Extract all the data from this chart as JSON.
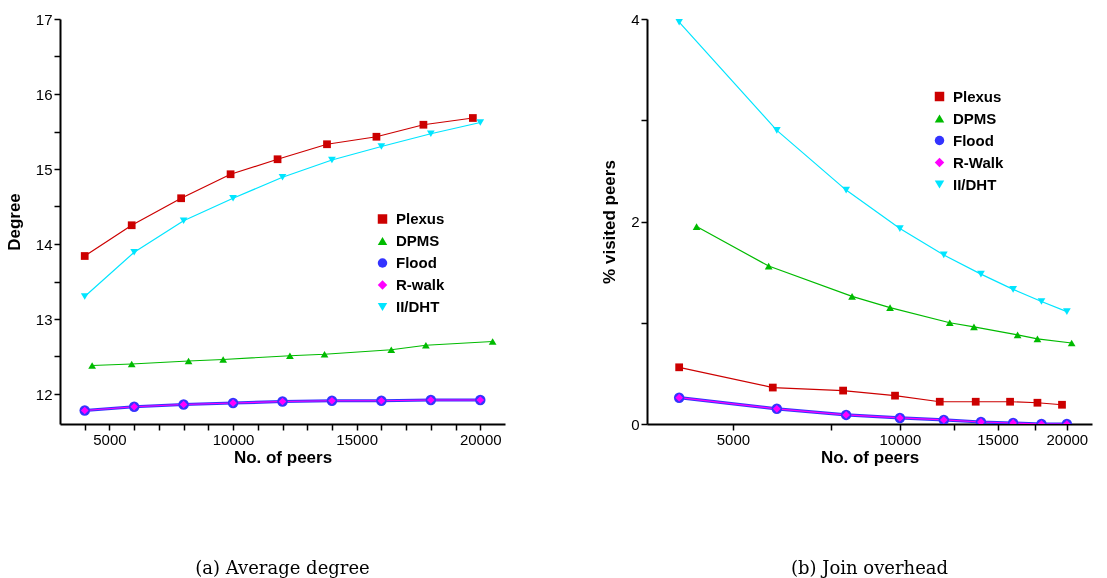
{
  "chart_data": [
    {
      "type": "line",
      "title": "(a) Average degree",
      "xlabel": "No. of peers",
      "ylabel": "Degree",
      "xlim": [
        3000,
        21000
      ],
      "xticks": [
        {
          "value": 4000,
          "label": null
        },
        5000,
        {
          "value": 6000,
          "label": null
        },
        {
          "value": 7000,
          "label": null
        },
        {
          "value": 8000,
          "label": null
        },
        {
          "value": 9000,
          "label": null
        },
        10000,
        {
          "value": 11000,
          "label": null
        },
        {
          "value": 12000,
          "label": null
        },
        {
          "value": 13000,
          "label": null
        },
        {
          "value": 14000,
          "label": null
        },
        15000,
        {
          "value": 16000,
          "label": null
        },
        {
          "value": 17000,
          "label": null
        },
        {
          "value": 18000,
          "label": null
        },
        {
          "value": 19000,
          "label": null
        },
        20000
      ],
      "ylim": [
        11.6,
        17
      ],
      "yticks": [
        12,
        {
          "value": 12.5,
          "label": null
        },
        13,
        {
          "value": 13.5,
          "label": null
        },
        14,
        {
          "value": 14.5,
          "label": null
        },
        15,
        {
          "value": 15.5,
          "label": null
        },
        16,
        {
          "value": 16.5,
          "label": null
        },
        17
      ],
      "grid": false,
      "legend": "right",
      "line_style": "solid",
      "series": [
        {
          "name": "Plexus",
          "color": "#cc0000",
          "marker": "square",
          "x": [
            4000,
            5900,
            7900,
            9900,
            11800,
            13800,
            15800,
            17700,
            19700
          ],
          "values": [
            13.84,
            14.25,
            14.61,
            14.93,
            15.13,
            15.33,
            15.43,
            15.59,
            15.68
          ]
        },
        {
          "name": "DPMS",
          "color": "#00bb00",
          "marker": "triangle",
          "x": [
            4300,
            5900,
            8200,
            9600,
            12300,
            13700,
            16400,
            17800,
            20500
          ],
          "values": [
            12.38,
            12.4,
            12.44,
            12.46,
            12.51,
            12.53,
            12.59,
            12.65,
            12.7
          ]
        },
        {
          "name": "Flood",
          "color": "#3333ff",
          "marker": "circle",
          "x": [
            4000,
            6000,
            8000,
            10000,
            12000,
            14000,
            16000,
            18000,
            20000
          ],
          "values": [
            11.78,
            11.83,
            11.86,
            11.88,
            11.9,
            11.91,
            11.91,
            11.92,
            11.92
          ]
        },
        {
          "name": "R-walk",
          "color": "#ff00ff",
          "marker": "diamond",
          "x": [
            4000,
            6000,
            8000,
            10000,
            12000,
            14000,
            16000,
            18000,
            20000
          ],
          "values": [
            11.78,
            11.83,
            11.86,
            11.88,
            11.9,
            11.91,
            11.91,
            11.92,
            11.92
          ]
        },
        {
          "name": "II/DHT",
          "color": "#00e5ff",
          "marker": "triangle-down",
          "x": [
            4000,
            6000,
            8000,
            10000,
            12000,
            14000,
            16000,
            18000,
            20000
          ],
          "values": [
            13.3,
            13.89,
            14.31,
            14.61,
            14.89,
            15.12,
            15.3,
            15.47,
            15.62
          ]
        }
      ]
    },
    {
      "type": "line",
      "title": "(b) Join overhead",
      "xlabel": "No. of peers",
      "ylabel": "% visited peers",
      "log": "x",
      "xlim": [
        3500,
        22200
      ],
      "xticks": [
        5000,
        {
          "value": 7500,
          "label": null
        },
        10000,
        {
          "value": 12500,
          "label": null
        },
        15000,
        {
          "value": 17500,
          "label": null
        },
        20000
      ],
      "ylim": [
        0,
        4
      ],
      "yticks": [
        0,
        {
          "value": 1,
          "label": null
        },
        2,
        {
          "value": 3,
          "label": null
        },
        4
      ],
      "grid": false,
      "legend": "top right",
      "line_style": "solid",
      "series": [
        {
          "name": "Plexus",
          "color": "#cc0000",
          "marker": "square",
          "x": [
            4000,
            5900,
            7900,
            9800,
            11800,
            13700,
            15800,
            17700,
            19600
          ],
          "values": [
            0.56,
            0.36,
            0.33,
            0.28,
            0.22,
            0.22,
            0.22,
            0.21,
            0.19
          ]
        },
        {
          "name": "DPMS",
          "color": "#00bb00",
          "marker": "triangle",
          "x": [
            4300,
            5800,
            8200,
            9600,
            12300,
            13600,
            16300,
            17700,
            20400
          ],
          "values": [
            1.95,
            1.56,
            1.26,
            1.15,
            1.0,
            0.96,
            0.88,
            0.84,
            0.8
          ]
        },
        {
          "name": "Flood",
          "color": "#3333ff",
          "marker": "circle",
          "x": [
            4000,
            6000,
            8000,
            10000,
            12000,
            14000,
            16000,
            18000,
            20000
          ],
          "values": [
            0.26,
            0.15,
            0.09,
            0.06,
            0.04,
            0.02,
            0.01,
            0.0,
            0.0
          ]
        },
        {
          "name": "R-Walk",
          "color": "#ff00ff",
          "marker": "diamond",
          "x": [
            4000,
            6000,
            8000,
            10000,
            12000,
            14000,
            16000,
            18000,
            20000
          ],
          "values": [
            0.26,
            0.15,
            0.09,
            0.06,
            0.04,
            0.02,
            0.01,
            0.0,
            0.0
          ]
        },
        {
          "name": "II/DHT",
          "color": "#00e5ff",
          "marker": "triangle-down",
          "x": [
            4000,
            6000,
            8000,
            10000,
            12000,
            14000,
            16000,
            18000,
            20000
          ],
          "values": [
            3.97,
            2.9,
            2.31,
            1.93,
            1.67,
            1.48,
            1.33,
            1.21,
            1.11
          ]
        }
      ]
    }
  ]
}
